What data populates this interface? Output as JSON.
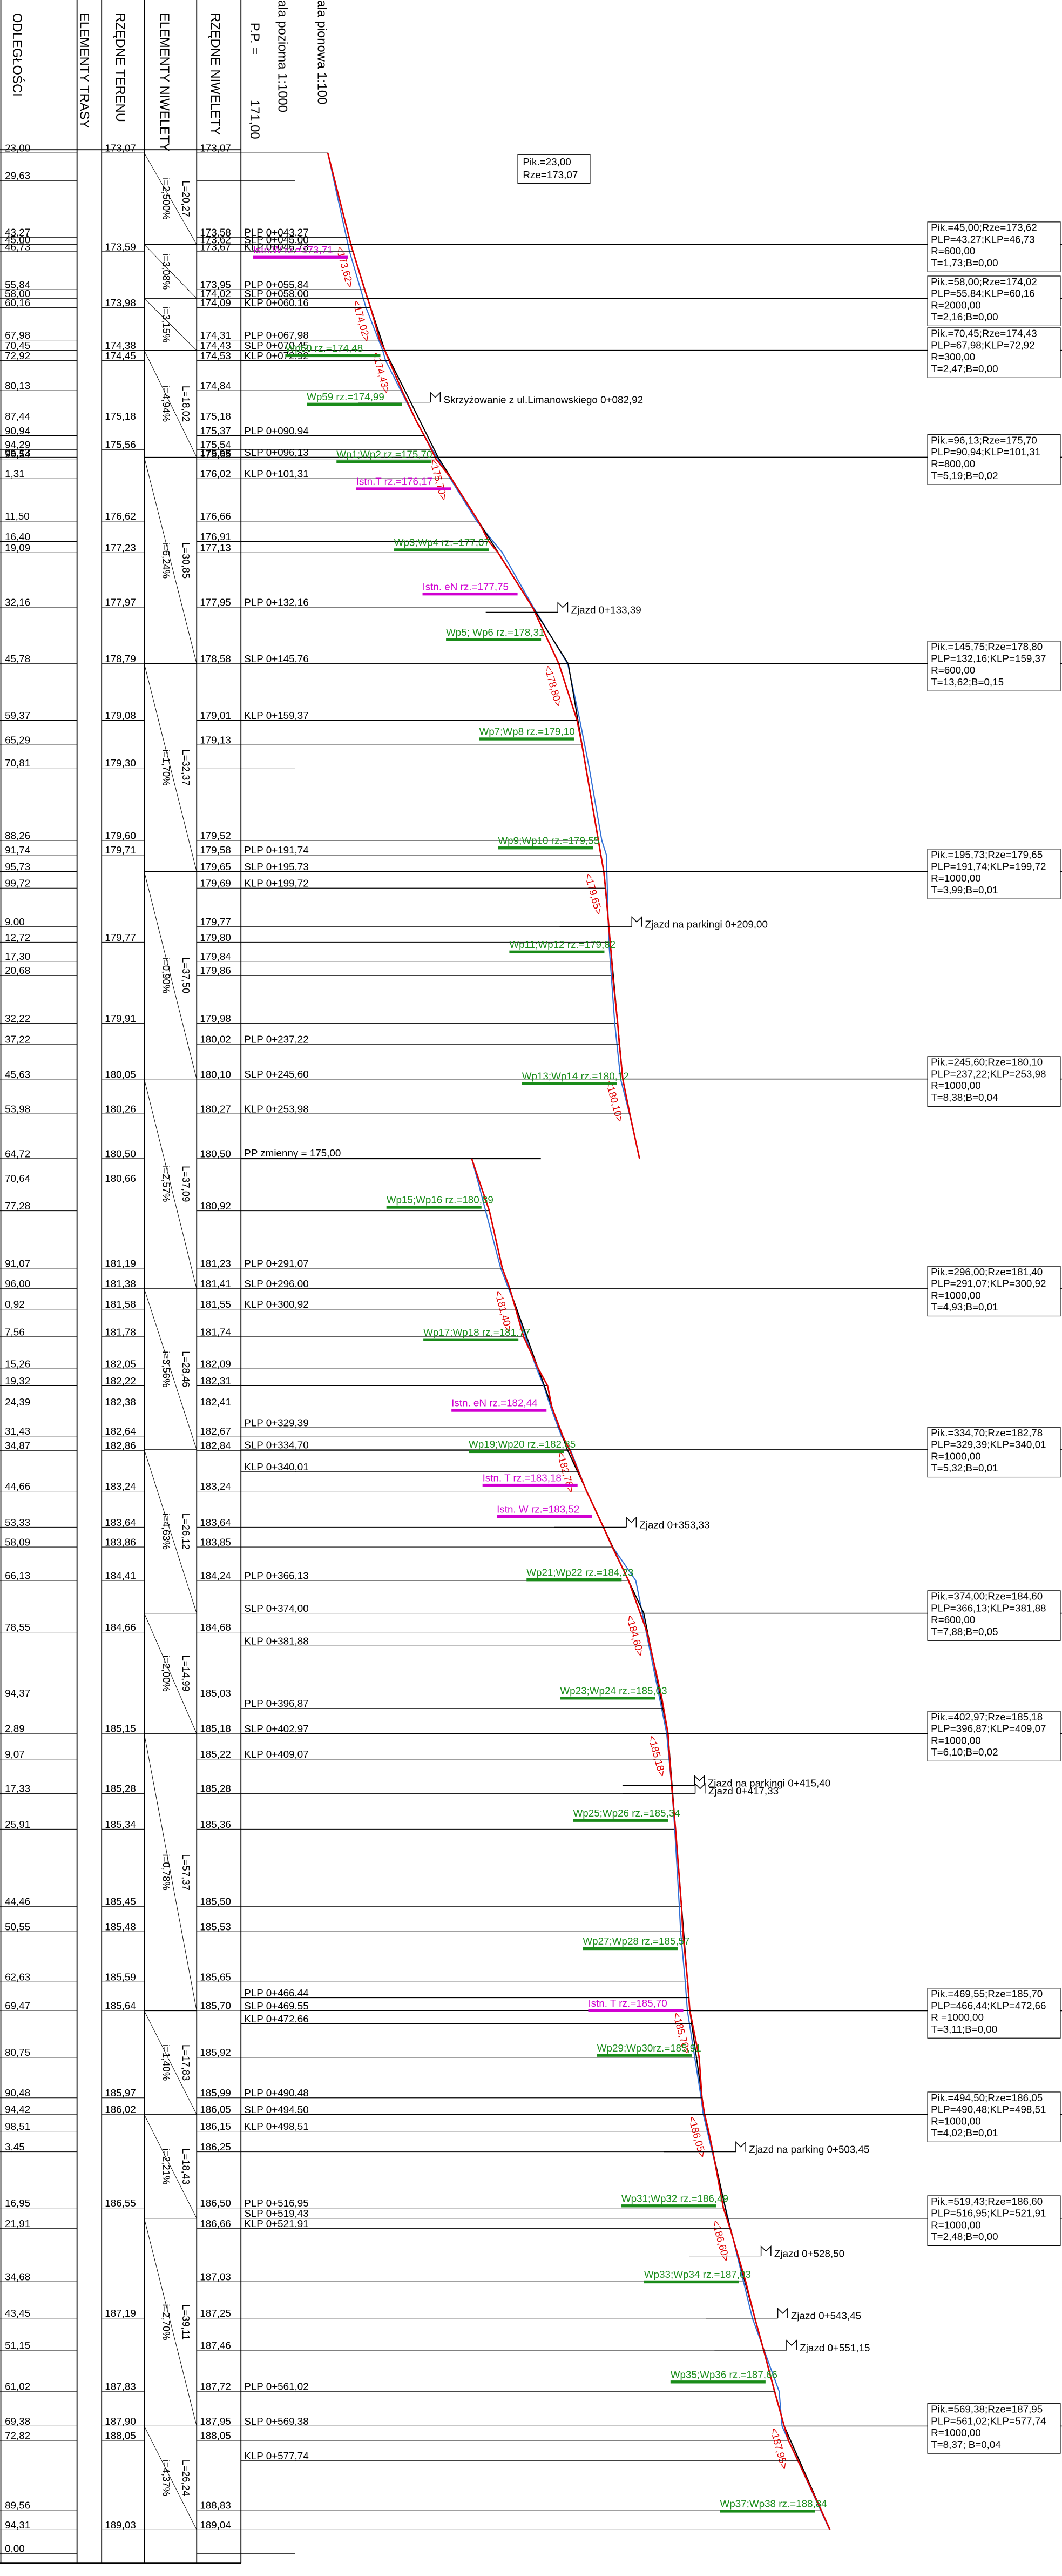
{
  "header": {
    "col_distance": "ODLEGŁOŚCI",
    "col_alignment": "ELEMENTY TRASY",
    "col_terrain": "RZĘDNE TERENU",
    "col_grade": "ELEMENTY NIWELETY",
    "col_niveleta": "RZĘDNE NIWELETY",
    "datum_label": "P.P. =",
    "datum": "171,00",
    "scale_h": "ala pozioma  1:1000",
    "scale_v": "ala pionowa  1:100"
  },
  "start_box": [
    "Pik.=23,00",
    "Rze=173,07"
  ],
  "rows": [
    {
      "d": "23,00",
      "t": "173,07",
      "n": "173,07"
    },
    {
      "d": "29,63"
    },
    {
      "d": "43,27",
      "n": "173,58"
    },
    {
      "d": "45,00",
      "n": "173,62"
    },
    {
      "d": "46,73",
      "t": "173,59",
      "n": "173,67"
    },
    {
      "d": "55,84",
      "n": "173,95"
    },
    {
      "d": "58,00",
      "n": "174,02"
    },
    {
      "d": "60,16",
      "t": "173,98",
      "n": "174,09"
    },
    {
      "d": "67,98",
      "n": "174,31"
    },
    {
      "d": "70,45",
      "t": "174,38",
      "n": "174,43"
    },
    {
      "d": "72,92",
      "t": "174,45",
      "n": "174,53"
    },
    {
      "d": "80,13",
      "n": "174,84"
    },
    {
      "d": "87,44",
      "t": "175,18",
      "n": "175,18"
    },
    {
      "d": "90,94",
      "n": "175,37"
    },
    {
      "d": "94,29",
      "t": "175,56",
      "n": "175,54"
    },
    {
      "d": "96,13",
      "n": "175,63"
    },
    {
      "d": "96,54",
      "n": "175,65"
    },
    {
      "d": "1,31",
      "n": "176,02"
    },
    {
      "d": "11,50",
      "t": "176,62",
      "n": "176,66"
    },
    {
      "d": "16,40",
      "n": "176,91"
    },
    {
      "d": "19,09",
      "t": "177,23",
      "n": "177,13"
    },
    {
      "d": "32,16",
      "t": "177,97",
      "n": "177,95"
    },
    {
      "d": "45,78",
      "t": "178,79",
      "n": "178,58"
    },
    {
      "d": "59,37",
      "t": "179,08",
      "n": "179,01"
    },
    {
      "d": "65,29",
      "n": "179,13"
    },
    {
      "d": "70,81",
      "t": "179,30"
    },
    {
      "d": "88,26",
      "t": "179,60",
      "n": "179,52"
    },
    {
      "d": "91,74",
      "t": "179,71",
      "n": "179,58"
    },
    {
      "d": "95,73",
      "n": "179,65"
    },
    {
      "d": "99,72",
      "n": "179,69"
    },
    {
      "d": "9,00",
      "n": "179,77"
    },
    {
      "d": "12,72",
      "t": "179,77",
      "n": "179,80"
    },
    {
      "d": "17,30",
      "n": "179,84"
    },
    {
      "d": "20,68",
      "n": "179,86"
    },
    {
      "d": "32,22",
      "t": "179,91",
      "n": "179,98"
    },
    {
      "d": "37,22",
      "n": "180,02"
    },
    {
      "d": "45,63",
      "t": "180,05",
      "n": "180,10"
    },
    {
      "d": "53,98",
      "t": "180,26",
      "n": "180,27"
    },
    {
      "d": "64,72",
      "t": "180,50",
      "n": "180,50",
      "pp": "PP zmienny =  175,00"
    },
    {
      "d": "70,64",
      "t": "180,66"
    },
    {
      "d": "77,28",
      "n": "180,92"
    },
    {
      "d": "91,07",
      "t": "181,19",
      "n": "181,23"
    },
    {
      "d": "96,00",
      "t": "181,38",
      "n": "181,41"
    },
    {
      "d": "0,92",
      "t": "181,58",
      "n": "181,55"
    },
    {
      "d": "7,56",
      "t": "181,78",
      "n": "181,74"
    },
    {
      "d": "15,26",
      "t": "182,05",
      "n": "182,09"
    },
    {
      "d": "19,32",
      "t": "182,22",
      "n": "182,31"
    },
    {
      "d": "24,39",
      "t": "182,38",
      "n": "182,41"
    },
    {
      "d": "31,43",
      "t": "182,64",
      "n": "182,67"
    },
    {
      "d": "34,87",
      "t": "182,86",
      "n": "182,84"
    },
    {
      "d": "44,66",
      "t": "183,24",
      "n": "183,24"
    },
    {
      "d": "53,33",
      "t": "183,64",
      "n": "183,64"
    },
    {
      "d": "58,09",
      "t": "183,86",
      "n": "183,85"
    },
    {
      "d": "66,13",
      "t": "184,41",
      "n": "184,24"
    },
    {
      "d": "78,55",
      "t": "184,66",
      "n": "184,68"
    },
    {
      "d": "94,37",
      "n": "185,03"
    },
    {
      "d": "2,89",
      "t": "185,15",
      "n": "185,18"
    },
    {
      "d": "9,07",
      "n": "185,22"
    },
    {
      "d": "17,33",
      "t": "185,28",
      "n": "185,28"
    },
    {
      "d": "25,91",
      "t": "185,34",
      "n": "185,36"
    },
    {
      "d": "44,46",
      "t": "185,45",
      "n": "185,50"
    },
    {
      "d": "50,55",
      "t": "185,48",
      "n": "185,53"
    },
    {
      "d": "62,63",
      "t": "185,59",
      "n": "185,65"
    },
    {
      "d": "69,47",
      "t": "185,64",
      "n": "185,70"
    },
    {
      "d": "80,75",
      "n": "185,92"
    },
    {
      "d": "90,48",
      "t": "185,97",
      "n": "185,99"
    },
    {
      "d": "94,42",
      "t": "186,02",
      "n": "186,05"
    },
    {
      "d": "98,51",
      "n": "186,15"
    },
    {
      "d": "3,45",
      "n": "186,25"
    },
    {
      "d": "16,95",
      "t": "186,55",
      "n": "186,50"
    },
    {
      "d": "21,91",
      "n": "186,66"
    },
    {
      "d": "34,68",
      "n": "187,03"
    },
    {
      "d": "43,45",
      "t": "187,19",
      "n": "187,25"
    },
    {
      "d": "51,15",
      "n": "187,46"
    },
    {
      "d": "61,02",
      "t": "187,83",
      "n": "187,72"
    },
    {
      "d": "69,38",
      "t": "187,90",
      "n": "187,95"
    },
    {
      "d": "72,82",
      "t": "188,05",
      "n": "188,05"
    },
    {
      "d": "89,56",
      "n": "188,83"
    },
    {
      "d": "94,31",
      "t": "189,03",
      "n": "189,04"
    },
    {
      "d": "0,00"
    }
  ],
  "curves": [
    [
      "Pik.=45,00;Rze=173,62",
      "PLP=43,27;KLP=46,73",
      "R=600,00",
      "T=1,73;B=0,00"
    ],
    [
      "Pik.=58,00;Rze=174,02",
      "PLP=55,84;KLP=60,16",
      "R=2000,00",
      "T=2,16;B=0,00"
    ],
    [
      "Pik.=70,45;Rze=174,43",
      "PLP=67,98;KLP=72,92",
      "R=300,00",
      "T=2,47;B=0,00"
    ],
    [
      "Pik.=96,13;Rze=175,70",
      "PLP=90,94;KLP=101,31",
      "R=800,00",
      "T=5,19;B=0,02"
    ],
    [
      "Pik.=145,75;Rze=178,80",
      "PLP=132,16;KLP=159,37",
      "R=600,00",
      "T=13,62;B=0,15"
    ],
    [
      "Pik.=195,73;Rze=179,65",
      "PLP=191,74;KLP=199,72",
      "R=1000,00",
      "T=3,99;B=0,01"
    ],
    [
      "Pik.=245,60;Rze=180,10",
      "PLP=237,22;KLP=253,98",
      "R=1000,00",
      "T=8,38;B=0,04"
    ],
    [
      "Pik.=296,00;Rze=181,40",
      "PLP=291,07;KLP=300,92",
      "R=1000,00",
      "T=4,93;B=0,01"
    ],
    [
      "Pik.=334,70;Rze=182,78",
      "PLP=329,39;KLP=340,01",
      "R=1000,00",
      "T=5,32;B=0,01"
    ],
    [
      "Pik.=374,00;Rze=184,60",
      "PLP=366,13;KLP=381,88",
      "R=600,00",
      "T=7,88;B=0,05"
    ],
    [
      "Pik.=402,97;Rze=185,18",
      "PLP=396,87;KLP=409,07",
      "R=1000,00",
      "T=6,10;B=0,02"
    ],
    [
      "Pik.=469,55;Rze=185,70",
      "PLP=466,44;KLP=472,66",
      "R  =1000,00",
      "T=3,11;B=0,00"
    ],
    [
      "Pik.=494,50;Rze=186,05",
      "PLP=490,48;KLP=498,51",
      "R=1000,00",
      "T=4,02;B=0,01"
    ],
    [
      "Pik.=519,43;Rze=186,60",
      "PLP=516,95;KLP=521,91",
      "R=1000,00",
      "T=2,48;B=0,00"
    ],
    [
      "Pik.=569,38;Rze=187,95",
      "PLP=561,02;KLP=577,74",
      "R=1000,00",
      "T=8,37;  B=0,04"
    ]
  ],
  "grades": [
    {
      "i": "i=2,500%",
      "L": "L=20,27"
    },
    {
      "i": "i=3,08%"
    },
    {
      "i": "i=3,15%"
    },
    {
      "i": "i=4,94%",
      "L": "L=18,02"
    },
    {
      "i": "i=6,24%",
      "L": "L=30,85"
    },
    {
      "i": "i=1,70%",
      "L": "L=32,37"
    },
    {
      "i": "i=0,90%",
      "L": "L=37,50"
    },
    {
      "i": "i=2,57%",
      "L": "L=37,09"
    },
    {
      "i": "i=3,56%",
      "L": "L=28,46"
    },
    {
      "i": "i=4,63%",
      "L": "L=26,12"
    },
    {
      "i": "i=2,00%",
      "L": "L=14,99"
    },
    {
      "i": "i=0,78%",
      "L": "L=57,37"
    },
    {
      "i": "i=1,40%",
      "L": "L=17,83"
    },
    {
      "i": "i=2,21%",
      "L": "L=18,43"
    },
    {
      "i": "i=2,70%",
      "L": "L=39,11"
    },
    {
      "i": "i=4,37%",
      "L": "L=26,24"
    }
  ],
  "stations": [
    "PLP 0+043,27",
    "SLP 0+045,00",
    "KLP 0+046,73",
    "PLP 0+055,84",
    "SLP 0+058,00",
    "KLP 0+060,16",
    "PLP 0+067,98",
    "SLP 0+070,45",
    "KLP 0+072,92",
    "PLP 0+090,94",
    "SLP 0+096,13",
    "KLP 0+101,31",
    "PLP 0+132,16",
    "SLP 0+145,76",
    "KLP 0+159,37",
    "PLP 0+191,74",
    "SLP 0+195,73",
    "KLP 0+199,72",
    "PLP 0+237,22",
    "SLP 0+245,60",
    "KLP 0+253,98",
    "PLP 0+291,07",
    "SLP 0+296,00",
    "KLP 0+300,92",
    "PLP 0+329,39",
    "SLP 0+334,70",
    "KLP 0+340,01",
    "PLP 0+366,13",
    "SLP 0+374,00",
    "KLP 0+381,88",
    "PLP 0+396,87",
    "SLP 0+402,97",
    "KLP 0+409,07",
    "PLP 0+466,44",
    "SLP 0+469,55",
    "KLP 0+472,66",
    "PLP 0+490,48",
    "SLP 0+494,50",
    "KLP 0+498,51",
    "PLP 0+516,95",
    "SLP 0+519,43",
    "KLP 0+521,91",
    "PLP 0+561,02",
    "SLP 0+569,38",
    "KLP 0+577,74"
  ],
  "wp_labels": [
    "Wp59  rz.=174,99",
    "Wp60 rz.=174,48",
    "Wp1;Wp2 rz.=175,70",
    "Wp3;Wp4  rz.=177,07",
    "Wp5;  Wp6  rz.=178,31",
    "Wp7;Wp8  rz.=179,10",
    "Wp9;Wp10  rz.=179,55",
    "Wp11;Wp12  rz.=179,82",
    "Wp13;Wp14  rz.=180,12",
    "Wp15;Wp16 rz.=180,89",
    "Wp17;Wp18  rz.=181,77",
    "Wp19;Wp20  rz.=182,85",
    "Wp21;Wp22  rz.=184,23",
    "Wp23;Wp24  rz.=185,03",
    "Wp25;Wp26  rz.=185,34",
    "Wp27;Wp28  rz.=185,57",
    "Wp29;Wp30rz.=185,91",
    "Wp31;Wp32  rz.=186,49",
    "Wp33;Wp34  rz.=187,03",
    "Wp35;Wp36  rz.=187,66",
    "Wp37;Wp38  rz.=188,84"
  ],
  "existing_labels": [
    "Istn.W rz.=173,71",
    "Istn.T  rz.=176,17",
    "Istn.  eN  rz.=177,75",
    "Istn.  eN  rz.=182,44",
    "Istn.  T   rz.=183,18",
    "Istn.  W   rz.=183,52",
    "Istn.  T   rz.=185,70"
  ],
  "red_labels": [
    "<173,62>",
    "<174,02>",
    "<174,43>",
    "<175,70>",
    "<178,80>",
    "<179,65>",
    "<180,10>",
    "<181,40>",
    "<182,78>",
    "<184,60>",
    "<185,18>",
    "<185,70>",
    "<186,05>",
    "<186,60>",
    "<187,95>"
  ],
  "notes": [
    "Skrzyżowanie z ul.Limanowskiego 0+082,92",
    "Zjazd 0+133,39",
    "Zjazd na parkingi 0+209,00",
    "Zjazd 0+353,33",
    "Zjazd na parkingi 0+415,40",
    "Zjazd 0+417,33",
    "Zjazd na parking 0+503,45",
    "Zjazd 0+528,50",
    "Zjazd 0+543,45",
    "Zjazd 0+551,15"
  ]
}
